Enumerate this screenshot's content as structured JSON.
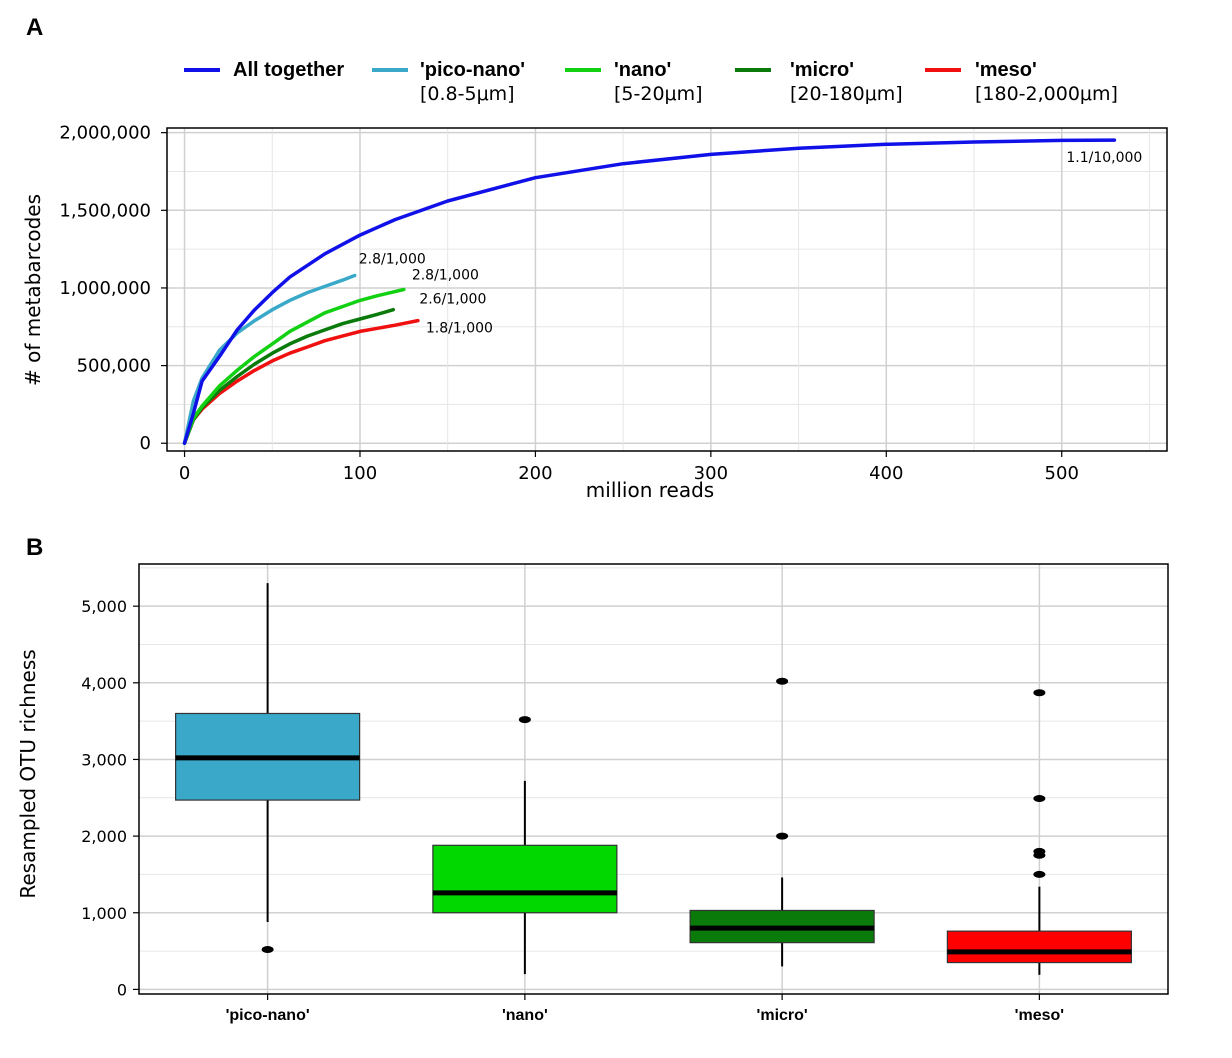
{
  "panels": {
    "a": "A",
    "b": "B"
  },
  "chart_data": [
    {
      "type": "line",
      "panel": "A",
      "xlabel": "million reads",
      "ylabel": "# of metabarcodes",
      "xlim": [
        -10,
        560
      ],
      "ylim": [
        -50000,
        2030000
      ],
      "grid": true,
      "legend_position": "top",
      "x_ticks": [
        0,
        100,
        200,
        300,
        400,
        500
      ],
      "x_tick_labels": [
        "0",
        "100",
        "200",
        "300",
        "400",
        "500"
      ],
      "y_ticks": [
        0,
        500000,
        1000000,
        1500000,
        2000000
      ],
      "y_tick_labels": [
        "0",
        "500,000",
        "1,000,000",
        "1,500,000",
        "2,000,000"
      ],
      "series": [
        {
          "name": "All together",
          "sub": "",
          "color": "#1010e8",
          "end_label": "1.1/10,000",
          "x": [
            0,
            5,
            10,
            20,
            30,
            40,
            50,
            60,
            80,
            100,
            120,
            150,
            200,
            250,
            300,
            350,
            400,
            450,
            500,
            530
          ],
          "y": [
            0,
            190000,
            400000,
            560000,
            730000,
            860000,
            970000,
            1070000,
            1220000,
            1340000,
            1440000,
            1560000,
            1710000,
            1800000,
            1860000,
            1900000,
            1925000,
            1940000,
            1950000,
            1952000
          ]
        },
        {
          "name": "'pico-nano'",
          "sub": "[0.8-5μm]",
          "color": "#3aa9c9",
          "end_label": "2.8/1,000",
          "x": [
            0,
            5,
            10,
            20,
            30,
            40,
            50,
            60,
            70,
            80,
            90,
            97
          ],
          "y": [
            0,
            270000,
            420000,
            600000,
            710000,
            790000,
            860000,
            920000,
            970000,
            1010000,
            1050000,
            1080000
          ]
        },
        {
          "name": "'nano'",
          "sub": "[5-20μm]",
          "color": "#12d012",
          "end_label": "2.8/1,000",
          "x": [
            0,
            5,
            10,
            20,
            30,
            40,
            50,
            60,
            70,
            80,
            90,
            100,
            110,
            125
          ],
          "y": [
            0,
            160000,
            240000,
            370000,
            470000,
            560000,
            640000,
            720000,
            780000,
            840000,
            880000,
            920000,
            950000,
            990000
          ]
        },
        {
          "name": "'micro'",
          "sub": "[20-180μm]",
          "color": "#0a7a0a",
          "end_label": "2.6/1,000",
          "x": [
            0,
            5,
            10,
            20,
            30,
            40,
            50,
            60,
            70,
            80,
            90,
            100,
            110,
            119
          ],
          "y": [
            0,
            150000,
            230000,
            340000,
            430000,
            510000,
            580000,
            640000,
            690000,
            730000,
            770000,
            800000,
            830000,
            860000
          ]
        },
        {
          "name": "'meso'",
          "sub": "[180-2,000μm]",
          "color": "#f01010",
          "end_label": "1.8/1,000",
          "x": [
            0,
            5,
            10,
            20,
            30,
            40,
            50,
            60,
            70,
            80,
            90,
            100,
            110,
            120,
            133
          ],
          "y": [
            0,
            150000,
            220000,
            320000,
            400000,
            470000,
            530000,
            580000,
            620000,
            660000,
            690000,
            720000,
            740000,
            760000,
            790000
          ]
        }
      ]
    },
    {
      "type": "box",
      "panel": "B",
      "xlabel": "",
      "ylabel": "Resampled OTU richness",
      "ylim": [
        -60,
        5550
      ],
      "grid": true,
      "y_ticks": [
        0,
        1000,
        2000,
        3000,
        4000,
        5000
      ],
      "y_tick_labels": [
        "0",
        "1,000",
        "2,000",
        "3,000",
        "4,000",
        "5,000"
      ],
      "categories": [
        "'pico-nano'",
        "'nano'",
        "'micro'",
        "'meso'"
      ],
      "colors": [
        "#3aa9c9",
        "#00d800",
        "#0a7a0a",
        "#ff0000"
      ],
      "boxes": [
        {
          "whisker_low": 880,
          "q1": 2470,
          "median": 3020,
          "q3": 3600,
          "whisker_high": 5300,
          "outliers": [
            520
          ]
        },
        {
          "whisker_low": 200,
          "q1": 1000,
          "median": 1260,
          "q3": 1880,
          "whisker_high": 2720,
          "outliers": [
            3520
          ]
        },
        {
          "whisker_low": 300,
          "q1": 610,
          "median": 800,
          "q3": 1030,
          "whisker_high": 1460,
          "outliers": [
            2000,
            4020
          ]
        },
        {
          "whisker_low": 190,
          "q1": 350,
          "median": 490,
          "q3": 760,
          "whisker_high": 1340,
          "outliers": [
            1500,
            1750,
            1800,
            2490,
            3870
          ]
        }
      ]
    }
  ]
}
